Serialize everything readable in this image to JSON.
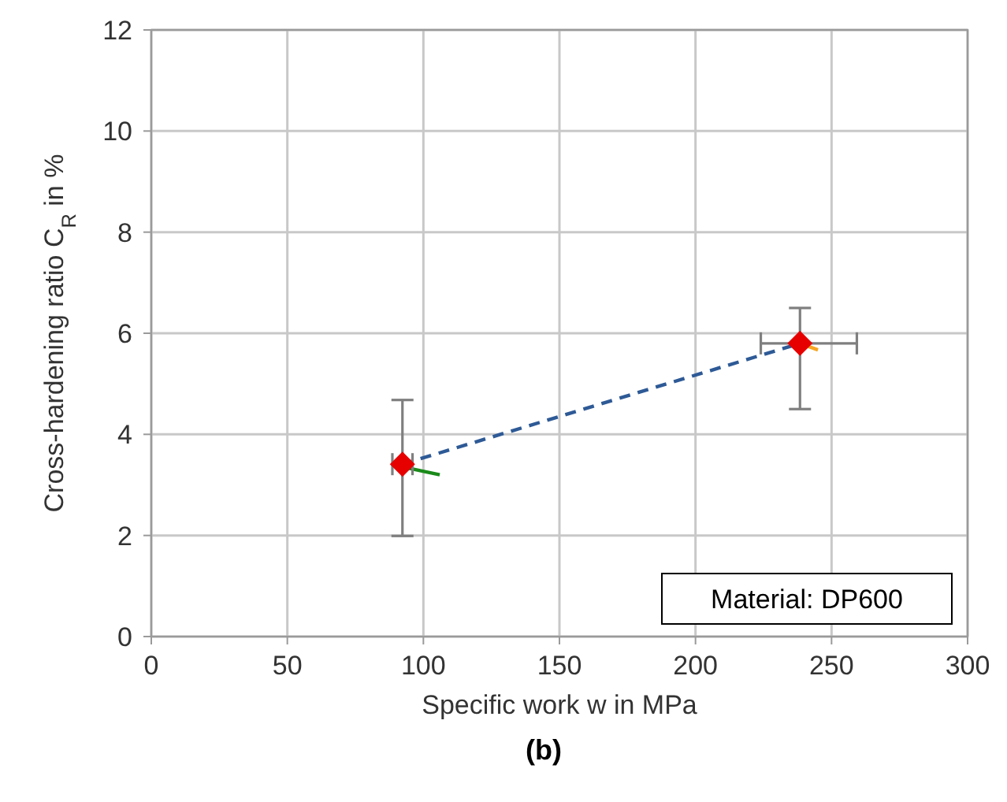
{
  "chart_data": {
    "type": "scatter",
    "xlabel": "Specific work w in MPa",
    "ylabel": "Cross-hardening ratio C$_{R}$ in %",
    "xlim": [
      0,
      300
    ],
    "ylim": [
      0,
      12
    ],
    "xticks": [
      0,
      50,
      100,
      150,
      200,
      250,
      300
    ],
    "yticks": [
      0,
      2,
      4,
      6,
      8,
      10,
      12
    ],
    "grid": true,
    "annotations": [
      "Material: DP600",
      "(b)"
    ],
    "series": [
      {
        "type": "line",
        "color": "#2e5a96",
        "line_style": "dashed",
        "marker": "none",
        "x": [
          92.3,
          238.4
        ],
        "values": [
          3.41,
          5.8
        ]
      },
      {
        "type": "line",
        "color": "#1a8a1a",
        "line_style": "solid",
        "marker": "none",
        "x": [
          93,
          106
        ],
        "values": [
          3.35,
          3.2
        ]
      },
      {
        "type": "line",
        "color": "#f5a623",
        "line_style": "solid",
        "marker": "none",
        "x": [
          238.4,
          245
        ],
        "values": [
          5.8,
          5.67
        ]
      },
      {
        "color": "#e60000",
        "marker": "diamond",
        "x": [
          92.3,
          238.4
        ],
        "values": [
          3.41,
          5.8
        ],
        "errors": [
          [
            1.99,
            4.68
          ],
          [
            4.5,
            6.5
          ]
        ],
        "xerrors": [
          [
            88.6,
            96
          ],
          [
            224,
            259.3
          ]
        ]
      }
    ]
  }
}
